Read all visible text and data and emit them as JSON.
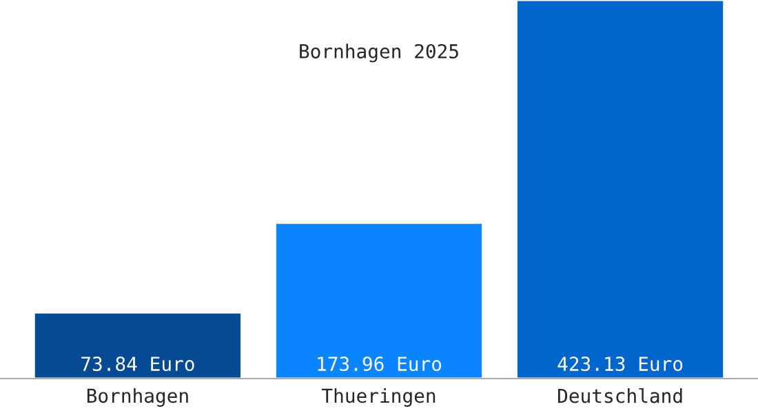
{
  "chart_data": {
    "type": "bar",
    "title": "Bornhagen 2025",
    "categories": [
      "Bornhagen",
      "Thueringen",
      "Deutschland"
    ],
    "values": [
      73.84,
      173.96,
      423.13
    ],
    "colors": [
      "#064a94",
      "#0a84ff",
      "#0066cc"
    ],
    "value_labels": [
      "73.84 Euro",
      "173.96 Euro",
      "423.13 Euro"
    ],
    "grid": false,
    "legend": false
  }
}
